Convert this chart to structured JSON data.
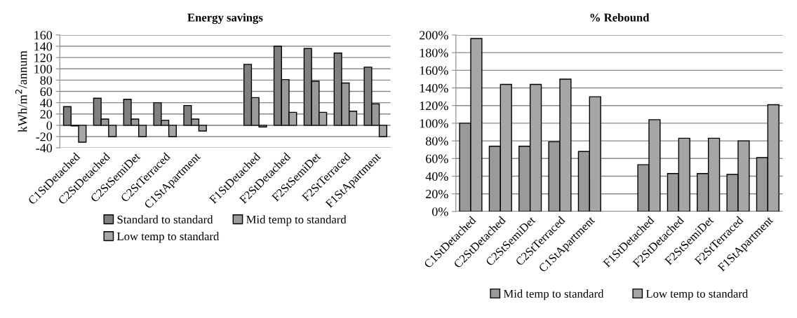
{
  "chart_data": [
    {
      "type": "bar",
      "title": "Energy savings",
      "ylabel": "kWh/m$^{2}$/annum",
      "categories": [
        "C1StDetached",
        "C2StDetached",
        "C2StSemiDet",
        "C2StTerraced",
        "C1StApartment",
        null,
        "F1StDetached",
        "F2StDetached",
        "F2StSemiDet",
        "F2StTerraced",
        "F1StApartment"
      ],
      "series": [
        {
          "name": "Standard to standard",
          "color": "#808080",
          "values": [
            33,
            48,
            46,
            40,
            35,
            null,
            108,
            140,
            136,
            128,
            103
          ]
        },
        {
          "name": "Mid temp to standard",
          "color": "#9a9a9a",
          "values": [
            -1,
            11,
            11,
            9,
            11,
            null,
            49,
            81,
            78,
            75,
            38
          ]
        },
        {
          "name": "Low temp to standard",
          "color": "#a6a6a6",
          "values": [
            -30,
            -20,
            -20,
            -20,
            -10,
            null,
            -3,
            23,
            23,
            25,
            -20
          ]
        }
      ],
      "ylim": [
        -40,
        160
      ],
      "yticks": [
        -40,
        -20,
        0,
        20,
        40,
        60,
        80,
        100,
        120,
        140,
        160
      ],
      "grid": "y",
      "legend": "bottom"
    },
    {
      "type": "bar",
      "title": "% Rebound",
      "categories": [
        "C1StDetached",
        "C2StDetached",
        "C2StSemiDet",
        "C2StTerraced",
        "C1StApartment",
        null,
        "F1StDetached",
        "F2StDetached",
        "F2StSemiDet",
        "F2StTerraced",
        "F1StApartment"
      ],
      "series": [
        {
          "name": "Mid temp to standard",
          "color": "#9a9a9a",
          "values": [
            100,
            74,
            74,
            79,
            68,
            null,
            53,
            43,
            43,
            42,
            61
          ]
        },
        {
          "name": "Low temp to standard",
          "color": "#a6a6a6",
          "values": [
            196,
            144,
            144,
            150,
            130,
            null,
            104,
            83,
            83,
            80,
            121
          ]
        }
      ],
      "ylim": [
        0,
        200
      ],
      "yticks": [
        {
          "value": 0,
          "label": "0%"
        },
        {
          "value": 20,
          "label": "20%"
        },
        {
          "value": 40,
          "label": "40%"
        },
        {
          "value": 60,
          "label": "60%"
        },
        {
          "value": 80,
          "label": "80%"
        },
        {
          "value": 100,
          "label": "100%"
        },
        {
          "value": 120,
          "label": "120%"
        },
        {
          "value": 140,
          "label": "140%"
        },
        {
          "value": 160,
          "label": "160%"
        },
        {
          "value": 180,
          "label": "180%"
        },
        {
          "value": 200,
          "label": "200%"
        }
      ],
      "grid": "y",
      "legend": "bottom"
    }
  ]
}
